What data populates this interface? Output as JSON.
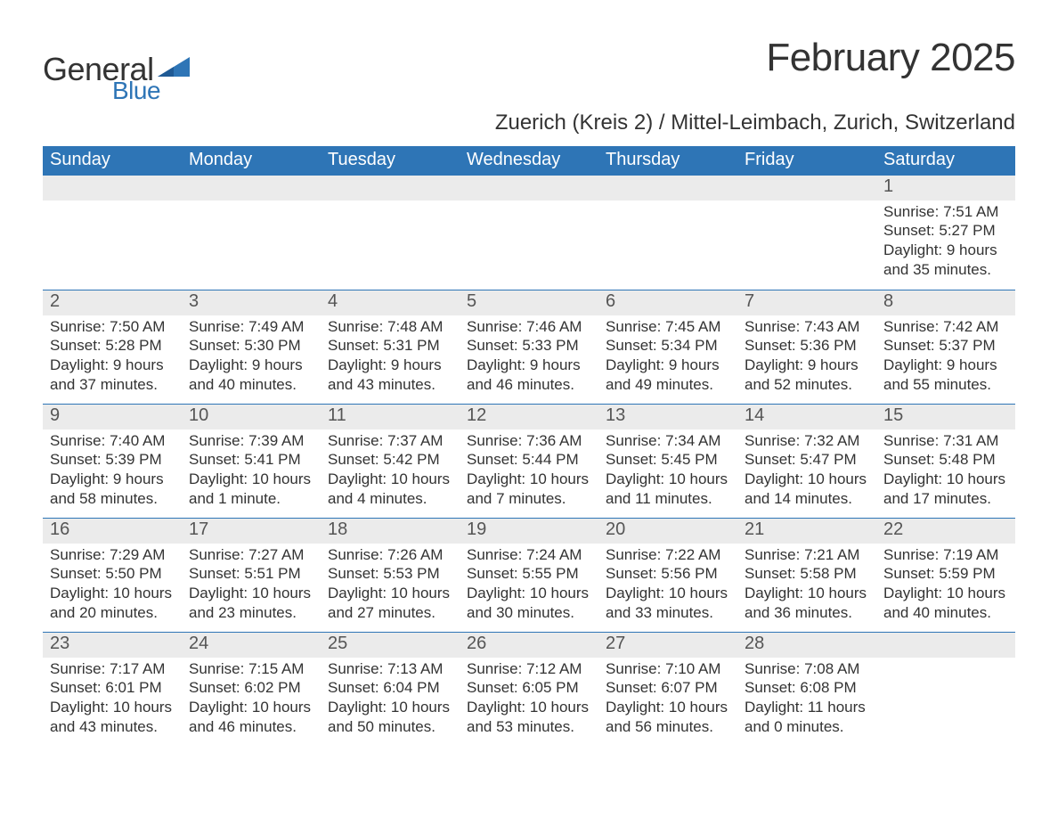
{
  "logo": {
    "text_general": "General",
    "text_blue": "Blue"
  },
  "title": "February 2025",
  "location": "Zuerich (Kreis 2) / Mittel-Leimbach, Zurich, Switzerland",
  "colors": {
    "header_bg": "#2e75b6",
    "header_text": "#ffffff",
    "daynum_bg": "#ebebeb",
    "page_bg": "#ffffff",
    "text": "#333333",
    "logo_blue": "#2e75b6"
  },
  "weekdays": [
    "Sunday",
    "Monday",
    "Tuesday",
    "Wednesday",
    "Thursday",
    "Friday",
    "Saturday"
  ],
  "weeks": [
    [
      null,
      null,
      null,
      null,
      null,
      null,
      {
        "day": "1",
        "sunrise": "Sunrise: 7:51 AM",
        "sunset": "Sunset: 5:27 PM",
        "dl1": "Daylight: 9 hours",
        "dl2": "and 35 minutes."
      }
    ],
    [
      {
        "day": "2",
        "sunrise": "Sunrise: 7:50 AM",
        "sunset": "Sunset: 5:28 PM",
        "dl1": "Daylight: 9 hours",
        "dl2": "and 37 minutes."
      },
      {
        "day": "3",
        "sunrise": "Sunrise: 7:49 AM",
        "sunset": "Sunset: 5:30 PM",
        "dl1": "Daylight: 9 hours",
        "dl2": "and 40 minutes."
      },
      {
        "day": "4",
        "sunrise": "Sunrise: 7:48 AM",
        "sunset": "Sunset: 5:31 PM",
        "dl1": "Daylight: 9 hours",
        "dl2": "and 43 minutes."
      },
      {
        "day": "5",
        "sunrise": "Sunrise: 7:46 AM",
        "sunset": "Sunset: 5:33 PM",
        "dl1": "Daylight: 9 hours",
        "dl2": "and 46 minutes."
      },
      {
        "day": "6",
        "sunrise": "Sunrise: 7:45 AM",
        "sunset": "Sunset: 5:34 PM",
        "dl1": "Daylight: 9 hours",
        "dl2": "and 49 minutes."
      },
      {
        "day": "7",
        "sunrise": "Sunrise: 7:43 AM",
        "sunset": "Sunset: 5:36 PM",
        "dl1": "Daylight: 9 hours",
        "dl2": "and 52 minutes."
      },
      {
        "day": "8",
        "sunrise": "Sunrise: 7:42 AM",
        "sunset": "Sunset: 5:37 PM",
        "dl1": "Daylight: 9 hours",
        "dl2": "and 55 minutes."
      }
    ],
    [
      {
        "day": "9",
        "sunrise": "Sunrise: 7:40 AM",
        "sunset": "Sunset: 5:39 PM",
        "dl1": "Daylight: 9 hours",
        "dl2": "and 58 minutes."
      },
      {
        "day": "10",
        "sunrise": "Sunrise: 7:39 AM",
        "sunset": "Sunset: 5:41 PM",
        "dl1": "Daylight: 10 hours",
        "dl2": "and 1 minute."
      },
      {
        "day": "11",
        "sunrise": "Sunrise: 7:37 AM",
        "sunset": "Sunset: 5:42 PM",
        "dl1": "Daylight: 10 hours",
        "dl2": "and 4 minutes."
      },
      {
        "day": "12",
        "sunrise": "Sunrise: 7:36 AM",
        "sunset": "Sunset: 5:44 PM",
        "dl1": "Daylight: 10 hours",
        "dl2": "and 7 minutes."
      },
      {
        "day": "13",
        "sunrise": "Sunrise: 7:34 AM",
        "sunset": "Sunset: 5:45 PM",
        "dl1": "Daylight: 10 hours",
        "dl2": "and 11 minutes."
      },
      {
        "day": "14",
        "sunrise": "Sunrise: 7:32 AM",
        "sunset": "Sunset: 5:47 PM",
        "dl1": "Daylight: 10 hours",
        "dl2": "and 14 minutes."
      },
      {
        "day": "15",
        "sunrise": "Sunrise: 7:31 AM",
        "sunset": "Sunset: 5:48 PM",
        "dl1": "Daylight: 10 hours",
        "dl2": "and 17 minutes."
      }
    ],
    [
      {
        "day": "16",
        "sunrise": "Sunrise: 7:29 AM",
        "sunset": "Sunset: 5:50 PM",
        "dl1": "Daylight: 10 hours",
        "dl2": "and 20 minutes."
      },
      {
        "day": "17",
        "sunrise": "Sunrise: 7:27 AM",
        "sunset": "Sunset: 5:51 PM",
        "dl1": "Daylight: 10 hours",
        "dl2": "and 23 minutes."
      },
      {
        "day": "18",
        "sunrise": "Sunrise: 7:26 AM",
        "sunset": "Sunset: 5:53 PM",
        "dl1": "Daylight: 10 hours",
        "dl2": "and 27 minutes."
      },
      {
        "day": "19",
        "sunrise": "Sunrise: 7:24 AM",
        "sunset": "Sunset: 5:55 PM",
        "dl1": "Daylight: 10 hours",
        "dl2": "and 30 minutes."
      },
      {
        "day": "20",
        "sunrise": "Sunrise: 7:22 AM",
        "sunset": "Sunset: 5:56 PM",
        "dl1": "Daylight: 10 hours",
        "dl2": "and 33 minutes."
      },
      {
        "day": "21",
        "sunrise": "Sunrise: 7:21 AM",
        "sunset": "Sunset: 5:58 PM",
        "dl1": "Daylight: 10 hours",
        "dl2": "and 36 minutes."
      },
      {
        "day": "22",
        "sunrise": "Sunrise: 7:19 AM",
        "sunset": "Sunset: 5:59 PM",
        "dl1": "Daylight: 10 hours",
        "dl2": "and 40 minutes."
      }
    ],
    [
      {
        "day": "23",
        "sunrise": "Sunrise: 7:17 AM",
        "sunset": "Sunset: 6:01 PM",
        "dl1": "Daylight: 10 hours",
        "dl2": "and 43 minutes."
      },
      {
        "day": "24",
        "sunrise": "Sunrise: 7:15 AM",
        "sunset": "Sunset: 6:02 PM",
        "dl1": "Daylight: 10 hours",
        "dl2": "and 46 minutes."
      },
      {
        "day": "25",
        "sunrise": "Sunrise: 7:13 AM",
        "sunset": "Sunset: 6:04 PM",
        "dl1": "Daylight: 10 hours",
        "dl2": "and 50 minutes."
      },
      {
        "day": "26",
        "sunrise": "Sunrise: 7:12 AM",
        "sunset": "Sunset: 6:05 PM",
        "dl1": "Daylight: 10 hours",
        "dl2": "and 53 minutes."
      },
      {
        "day": "27",
        "sunrise": "Sunrise: 7:10 AM",
        "sunset": "Sunset: 6:07 PM",
        "dl1": "Daylight: 10 hours",
        "dl2": "and 56 minutes."
      },
      {
        "day": "28",
        "sunrise": "Sunrise: 7:08 AM",
        "sunset": "Sunset: 6:08 PM",
        "dl1": "Daylight: 11 hours",
        "dl2": "and 0 minutes."
      },
      null
    ]
  ]
}
